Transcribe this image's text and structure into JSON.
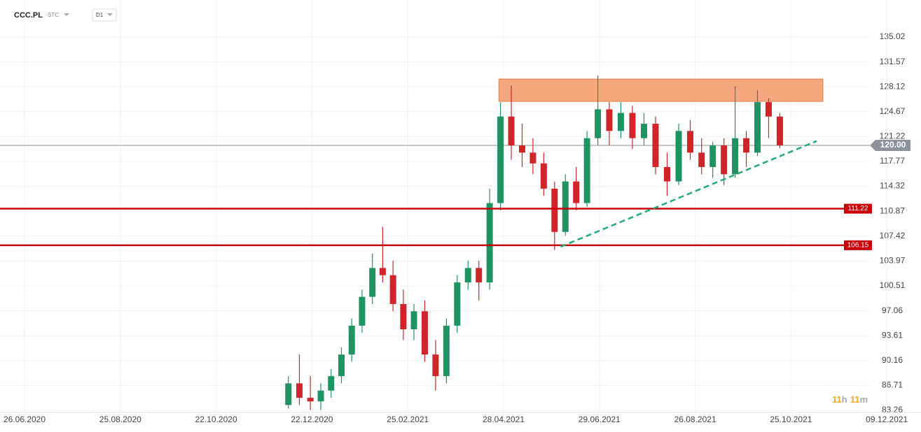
{
  "header": {
    "symbol": "CCC.PL",
    "exchange": "STC",
    "interval": "D1",
    "countdown": [
      "11",
      "h",
      "11",
      "m"
    ]
  },
  "chart_data": {
    "type": "candlestick",
    "x": [
      "07.12.2020",
      "14.12.2020",
      "21.12.2020",
      "28.12.2020",
      "04.01.2021",
      "11.01.2021",
      "18.01.2021",
      "25.01.2021",
      "01.02.2021",
      "08.02.2021",
      "15.02.2021",
      "22.02.2021",
      "01.03.2021",
      "08.03.2021",
      "15.03.2021",
      "22.03.2021",
      "29.03.2021",
      "05.04.2021",
      "12.04.2021",
      "19.04.2021",
      "26.04.2021",
      "03.05.2021",
      "10.05.2021",
      "17.05.2021",
      "24.05.2021",
      "31.05.2021",
      "07.06.2021",
      "14.06.2021",
      "21.06.2021",
      "28.06.2021",
      "05.07.2021",
      "12.07.2021",
      "19.07.2021",
      "26.07.2021",
      "02.08.2021",
      "09.08.2021",
      "16.08.2021",
      "23.08.2021",
      "30.08.2021",
      "06.09.2021",
      "13.09.2021",
      "20.09.2021",
      "27.09.2021",
      "04.10.2021",
      "11.10.2021",
      "18.10.2021"
    ],
    "open": [
      84,
      87,
      85,
      84.5,
      86,
      88,
      91,
      95,
      99,
      103,
      102,
      98,
      94.5,
      97,
      91,
      88,
      95,
      101,
      103,
      101,
      112,
      124,
      120,
      119,
      117.5,
      114,
      108,
      115,
      112,
      121,
      125,
      122,
      124.5,
      121,
      123,
      117,
      115,
      122,
      119,
      117,
      120,
      116,
      121,
      119,
      126,
      124
    ],
    "high": [
      88,
      91,
      88,
      87,
      89,
      92,
      96,
      100,
      105,
      108.7,
      104,
      100,
      98,
      98.5,
      93,
      96,
      102,
      104,
      104,
      114,
      126,
      128.3,
      123,
      121,
      119,
      115,
      116,
      117,
      122,
      129.7,
      126,
      126,
      125.5,
      124.5,
      124,
      119,
      123,
      123.5,
      121,
      120.5,
      121,
      128.2,
      122,
      127.7,
      126.5,
      124.5
    ],
    "low": [
      83.5,
      84,
      83.3,
      83.3,
      85,
      87,
      90,
      94,
      98,
      101,
      97,
      93,
      93,
      90,
      86,
      87,
      94,
      100,
      98.5,
      100,
      111,
      118,
      117,
      116,
      113,
      105.5,
      107.5,
      111,
      111.5,
      120,
      120,
      121,
      119.5,
      120,
      116,
      113,
      114.5,
      118,
      116,
      115.5,
      114.5,
      115.5,
      117,
      118.5,
      121,
      119.6
    ],
    "close": [
      87,
      85,
      84.5,
      86,
      88,
      91,
      95,
      99,
      103,
      102,
      98,
      94.5,
      97,
      91,
      88,
      95,
      101,
      103,
      101,
      112,
      124,
      120,
      119,
      117.5,
      114,
      108,
      115,
      112,
      121,
      125,
      122,
      124.5,
      121,
      123,
      117,
      115,
      122,
      119,
      117,
      120,
      116,
      121,
      119,
      126,
      124,
      120
    ],
    "up_color": "#1f9463",
    "down_color": "#d0242b",
    "ylim": [
      82.97,
      140.16
    ],
    "yticks": [
      135.02,
      131.57,
      128.12,
      124.67,
      121.22,
      117.77,
      114.32,
      110.87,
      107.42,
      103.97,
      100.51,
      97.06,
      93.61,
      90.16,
      86.71,
      83.26
    ],
    "xticks": [
      "26.06.2020",
      "25.08.2020",
      "22.10.2020",
      "22.12.2020",
      "25.02.2021",
      "28.04.2021",
      "29.06.2021",
      "26.08.2021",
      "25.10.2021",
      "09.12.2021"
    ],
    "grid": true,
    "hlines": [
      {
        "value": 111.22,
        "color": "#c8000a"
      },
      {
        "value": 106.15,
        "color": "#c8000a"
      }
    ],
    "price_line": {
      "value": 120,
      "label": "120.00",
      "color": "#8c939d"
    },
    "zone": {
      "x": [
        "25.04.2021",
        "09.11.2021"
      ],
      "y": [
        126.1,
        129.2
      ],
      "color": "#f5a77e"
    },
    "trendline": {
      "x": [
        "04.06.2021",
        "06.11.2021"
      ],
      "y": [
        105.95,
        120.6
      ],
      "color": "#1fae72"
    }
  }
}
